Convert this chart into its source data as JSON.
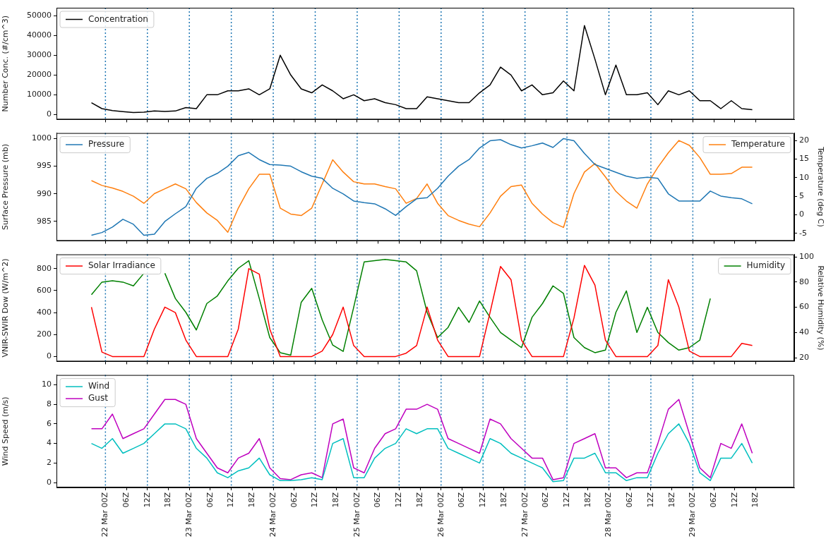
{
  "chart_data": [
    {
      "type": "line",
      "ylabel": "Number Conc. (#/cm^3)",
      "legend": "top left",
      "grid": false,
      "tick_labels": "y",
      "x": [
        "--03-21T20:00",
        "--03-21T23:00",
        "--03-22T02:00",
        "--03-22T05:00",
        "--03-22T08:00",
        "--03-22T11:00",
        "--03-22T14:00",
        "--03-22T17:00",
        "--03-22T20:00",
        "--03-22T23:00",
        "--03-23T02:00",
        "--03-23T05:00",
        "--03-23T08:00",
        "--03-23T11:00",
        "--03-23T14:00",
        "--03-23T17:00",
        "--03-23T20:00",
        "--03-23T23:00",
        "--03-24T02:00",
        "--03-24T05:00",
        "--03-24T08:00",
        "--03-24T11:00",
        "--03-24T14:00",
        "--03-24T17:00",
        "--03-24T20:00",
        "--03-24T23:00",
        "--03-25T02:00",
        "--03-25T05:00",
        "--03-25T08:00",
        "--03-25T11:00",
        "--03-25T14:00",
        "--03-25T17:00",
        "--03-25T20:00",
        "--03-25T23:00",
        "--03-26T02:00",
        "--03-26T05:00",
        "--03-26T08:00",
        "--03-26T11:00",
        "--03-26T14:00",
        "--03-26T17:00",
        "--03-26T20:00",
        "--03-26T23:00",
        "--03-27T02:00",
        "--03-27T05:00",
        "--03-27T08:00",
        "--03-27T11:00",
        "--03-27T14:00",
        "--03-27T17:00",
        "--03-27T20:00",
        "--03-27T23:00",
        "--03-28T02:00",
        "--03-28T05:00",
        "--03-28T08:00",
        "--03-28T11:00",
        "--03-28T14:00",
        "--03-28T17:00",
        "--03-28T20:00",
        "--03-28T23:00",
        "--03-29T02:00",
        "--03-29T05:00",
        "--03-29T08:00",
        "--03-29T11:00",
        "--03-29T14:00",
        "--03-29T17:00"
      ],
      "xlim": [
        "--03-21T10:00",
        "--03-30T05:00"
      ],
      "xticks": [
        {
          "value": "--03-22T00:00",
          "label": null
        },
        {
          "value": "--03-22T06:00",
          "label": null
        },
        {
          "value": "--03-22T12:00",
          "label": null
        },
        {
          "value": "--03-22T18:00",
          "label": null
        },
        {
          "value": "--03-23T00:00",
          "label": null
        },
        {
          "value": "--03-23T06:00",
          "label": null
        },
        {
          "value": "--03-23T12:00",
          "label": null
        },
        {
          "value": "--03-23T18:00",
          "label": null
        },
        {
          "value": "--03-24T00:00",
          "label": null
        },
        {
          "value": "--03-24T06:00",
          "label": null
        },
        {
          "value": "--03-24T12:00",
          "label": null
        },
        {
          "value": "--03-24T18:00",
          "label": null
        },
        {
          "value": "--03-25T00:00",
          "label": null
        },
        {
          "value": "--03-25T06:00",
          "label": null
        },
        {
          "value": "--03-25T12:00",
          "label": null
        },
        {
          "value": "--03-25T18:00",
          "label": null
        },
        {
          "value": "--03-26T00:00",
          "label": null
        },
        {
          "value": "--03-26T06:00",
          "label": null
        },
        {
          "value": "--03-26T12:00",
          "label": null
        },
        {
          "value": "--03-26T18:00",
          "label": null
        },
        {
          "value": "--03-27T00:00",
          "label": null
        },
        {
          "value": "--03-27T06:00",
          "label": null
        },
        {
          "value": "--03-27T12:00",
          "label": null
        },
        {
          "value": "--03-27T18:00",
          "label": null
        },
        {
          "value": "--03-28T00:00",
          "label": null
        },
        {
          "value": "--03-28T06:00",
          "label": null
        },
        {
          "value": "--03-28T12:00",
          "label": null
        },
        {
          "value": "--03-28T18:00",
          "label": null
        },
        {
          "value": "--03-29T00:00",
          "label": null
        },
        {
          "value": "--03-29T06:00",
          "label": null
        },
        {
          "value": "--03-29T12:00",
          "label": null
        },
        {
          "value": "--03-29T18:00",
          "label": null
        }
      ],
      "ylim": [
        -2500,
        54000
      ],
      "yticks": [
        0,
        10000,
        20000,
        30000,
        40000,
        50000
      ],
      "ref_lines": [
        {
          "axis": "x",
          "value": "--03-22T00:00",
          "color": "#1f77b4",
          "line_style": "dotted"
        },
        {
          "axis": "x",
          "value": "--03-22T12:00",
          "color": "#1f77b4",
          "line_style": "dotted"
        },
        {
          "axis": "x",
          "value": "--03-23T00:00",
          "color": "#1f77b4",
          "line_style": "dotted"
        },
        {
          "axis": "x",
          "value": "--03-23T12:00",
          "color": "#1f77b4",
          "line_style": "dotted"
        },
        {
          "axis": "x",
          "value": "--03-24T00:00",
          "color": "#1f77b4",
          "line_style": "dotted"
        },
        {
          "axis": "x",
          "value": "--03-24T12:00",
          "color": "#1f77b4",
          "line_style": "dotted"
        },
        {
          "axis": "x",
          "value": "--03-25T00:00",
          "color": "#1f77b4",
          "line_style": "dotted"
        },
        {
          "axis": "x",
          "value": "--03-25T12:00",
          "color": "#1f77b4",
          "line_style": "dotted"
        },
        {
          "axis": "x",
          "value": "--03-26T00:00",
          "color": "#1f77b4",
          "line_style": "dotted"
        },
        {
          "axis": "x",
          "value": "--03-26T12:00",
          "color": "#1f77b4",
          "line_style": "dotted"
        },
        {
          "axis": "x",
          "value": "--03-27T00:00",
          "color": "#1f77b4",
          "line_style": "dotted"
        },
        {
          "axis": "x",
          "value": "--03-27T12:00",
          "color": "#1f77b4",
          "line_style": "dotted"
        },
        {
          "axis": "x",
          "value": "--03-28T00:00",
          "color": "#1f77b4",
          "line_style": "dotted"
        },
        {
          "axis": "x",
          "value": "--03-28T12:00",
          "color": "#1f77b4",
          "line_style": "dotted"
        },
        {
          "axis": "x",
          "value": "--03-29T00:00",
          "color": "#1f77b4",
          "line_style": "dotted"
        }
      ],
      "series": [
        {
          "name": "Concentration",
          "color": "#000000",
          "values": [
            6000,
            3000,
            2000,
            1500,
            1000,
            1200,
            1800,
            1600,
            1800,
            3500,
            3000,
            10000,
            10000,
            12000,
            12000,
            13000,
            10000,
            13000,
            30000,
            20000,
            13000,
            11000,
            15000,
            12000,
            8000,
            10000,
            7000,
            8000,
            6000,
            5000,
            3000,
            3000,
            9000,
            8000,
            7000,
            6000,
            6000,
            11000,
            15000,
            24000,
            20000,
            12000,
            15000,
            10000,
            11000,
            17000,
            12000,
            45000,
            28000,
            10000,
            25000,
            10000,
            10000,
            11000,
            5000,
            12000,
            10000,
            12000,
            7000,
            7000,
            3000,
            7000,
            3000,
            2500
          ]
        }
      ]
    },
    {
      "type": "line",
      "ylabel": "Surface Pressure (mb)",
      "y2label": "Temperature (deg C)",
      "legend": "top left",
      "grid": false,
      "tick_labels": "y",
      "x": [
        "--03-21T20:00",
        "--03-21T23:00",
        "--03-22T02:00",
        "--03-22T05:00",
        "--03-22T08:00",
        "--03-22T11:00",
        "--03-22T14:00",
        "--03-22T17:00",
        "--03-22T20:00",
        "--03-22T23:00",
        "--03-23T02:00",
        "--03-23T05:00",
        "--03-23T08:00",
        "--03-23T11:00",
        "--03-23T14:00",
        "--03-23T17:00",
        "--03-23T20:00",
        "--03-23T23:00",
        "--03-24T02:00",
        "--03-24T05:00",
        "--03-24T08:00",
        "--03-24T11:00",
        "--03-24T14:00",
        "--03-24T17:00",
        "--03-24T20:00",
        "--03-24T23:00",
        "--03-25T02:00",
        "--03-25T05:00",
        "--03-25T08:00",
        "--03-25T11:00",
        "--03-25T14:00",
        "--03-25T17:00",
        "--03-25T20:00",
        "--03-25T23:00",
        "--03-26T02:00",
        "--03-26T05:00",
        "--03-26T08:00",
        "--03-26T11:00",
        "--03-26T14:00",
        "--03-26T17:00",
        "--03-26T20:00",
        "--03-26T23:00",
        "--03-27T02:00",
        "--03-27T05:00",
        "--03-27T08:00",
        "--03-27T11:00",
        "--03-27T14:00",
        "--03-27T17:00",
        "--03-27T20:00",
        "--03-27T23:00",
        "--03-28T02:00",
        "--03-28T05:00",
        "--03-28T08:00",
        "--03-28T11:00",
        "--03-28T14:00",
        "--03-28T17:00",
        "--03-28T20:00",
        "--03-28T23:00",
        "--03-29T02:00",
        "--03-29T05:00",
        "--03-29T08:00",
        "--03-29T11:00",
        "--03-29T14:00",
        "--03-29T17:00"
      ],
      "xlim": [
        "--03-21T10:00",
        "--03-30T05:00"
      ],
      "xticks": [
        {
          "value": "--03-22T00:00",
          "label": null
        },
        {
          "value": "--03-22T06:00",
          "label": null
        },
        {
          "value": "--03-22T12:00",
          "label": null
        },
        {
          "value": "--03-22T18:00",
          "label": null
        },
        {
          "value": "--03-23T00:00",
          "label": null
        },
        {
          "value": "--03-23T06:00",
          "label": null
        },
        {
          "value": "--03-23T12:00",
          "label": null
        },
        {
          "value": "--03-23T18:00",
          "label": null
        },
        {
          "value": "--03-24T00:00",
          "label": null
        },
        {
          "value": "--03-24T06:00",
          "label": null
        },
        {
          "value": "--03-24T12:00",
          "label": null
        },
        {
          "value": "--03-24T18:00",
          "label": null
        },
        {
          "value": "--03-25T00:00",
          "label": null
        },
        {
          "value": "--03-25T06:00",
          "label": null
        },
        {
          "value": "--03-25T12:00",
          "label": null
        },
        {
          "value": "--03-25T18:00",
          "label": null
        },
        {
          "value": "--03-26T00:00",
          "label": null
        },
        {
          "value": "--03-26T06:00",
          "label": null
        },
        {
          "value": "--03-26T12:00",
          "label": null
        },
        {
          "value": "--03-26T18:00",
          "label": null
        },
        {
          "value": "--03-27T00:00",
          "label": null
        },
        {
          "value": "--03-27T06:00",
          "label": null
        },
        {
          "value": "--03-27T12:00",
          "label": null
        },
        {
          "value": "--03-27T18:00",
          "label": null
        },
        {
          "value": "--03-28T00:00",
          "label": null
        },
        {
          "value": "--03-28T06:00",
          "label": null
        },
        {
          "value": "--03-28T12:00",
          "label": null
        },
        {
          "value": "--03-28T18:00",
          "label": null
        },
        {
          "value": "--03-29T00:00",
          "label": null
        },
        {
          "value": "--03-29T06:00",
          "label": null
        },
        {
          "value": "--03-29T12:00",
          "label": null
        },
        {
          "value": "--03-29T18:00",
          "label": null
        }
      ],
      "ylim": [
        981.5,
        1001
      ],
      "yticks": [
        985,
        990,
        995,
        1000
      ],
      "y2lim": [
        -7,
        22
      ],
      "y2ticks": [
        -5,
        0,
        5,
        10,
        15,
        20
      ],
      "ref_lines": [
        {
          "axis": "x",
          "value": "--03-22T00:00",
          "color": "#1f77b4",
          "line_style": "dotted"
        },
        {
          "axis": "x",
          "value": "--03-22T12:00",
          "color": "#1f77b4",
          "line_style": "dotted"
        },
        {
          "axis": "x",
          "value": "--03-23T00:00",
          "color": "#1f77b4",
          "line_style": "dotted"
        },
        {
          "axis": "x",
          "value": "--03-23T12:00",
          "color": "#1f77b4",
          "line_style": "dotted"
        },
        {
          "axis": "x",
          "value": "--03-24T00:00",
          "color": "#1f77b4",
          "line_style": "dotted"
        },
        {
          "axis": "x",
          "value": "--03-24T12:00",
          "color": "#1f77b4",
          "line_style": "dotted"
        },
        {
          "axis": "x",
          "value": "--03-25T00:00",
          "color": "#1f77b4",
          "line_style": "dotted"
        },
        {
          "axis": "x",
          "value": "--03-25T12:00",
          "color": "#1f77b4",
          "line_style": "dotted"
        },
        {
          "axis": "x",
          "value": "--03-26T00:00",
          "color": "#1f77b4",
          "line_style": "dotted"
        },
        {
          "axis": "x",
          "value": "--03-26T12:00",
          "color": "#1f77b4",
          "line_style": "dotted"
        },
        {
          "axis": "x",
          "value": "--03-27T00:00",
          "color": "#1f77b4",
          "line_style": "dotted"
        },
        {
          "axis": "x",
          "value": "--03-27T12:00",
          "color": "#1f77b4",
          "line_style": "dotted"
        },
        {
          "axis": "x",
          "value": "--03-28T00:00",
          "color": "#1f77b4",
          "line_style": "dotted"
        },
        {
          "axis": "x",
          "value": "--03-28T12:00",
          "color": "#1f77b4",
          "line_style": "dotted"
        },
        {
          "axis": "x",
          "value": "--03-29T00:00",
          "color": "#1f77b4",
          "line_style": "dotted"
        }
      ],
      "series": [
        {
          "name": "Pressure",
          "color": "#1f77b4",
          "values": [
            982.5,
            983,
            984,
            985.4,
            984.5,
            982.5,
            982.7,
            985,
            986.4,
            987.7,
            991,
            992.8,
            993.7,
            995,
            996.9,
            997.5,
            996.2,
            995.3,
            995.2,
            995,
            994,
            993.2,
            992.8,
            991,
            990,
            988.7,
            988.4,
            988.2,
            987.3,
            986.1,
            987.7,
            989.1,
            989.3,
            991,
            993.2,
            995,
            996.2,
            998.3,
            999.6,
            999.8,
            998.9,
            998.3,
            998.7,
            999.2,
            998.4,
            1000,
            999.6,
            997.3,
            995.3,
            994.6,
            993.9,
            993.2,
            992.8,
            993,
            992.8,
            990,
            988.7,
            988.7,
            988.7,
            990.5,
            989.6,
            989.3,
            989.1,
            988.2
          ]
        },
        {
          "name": "Temperature",
          "color": "#ff7f0e",
          "axis": "y2",
          "values": [
            9.2,
            7.9,
            7.2,
            6.3,
            5,
            3.1,
            5.7,
            7,
            8.3,
            7,
            3.3,
            0.5,
            -1.5,
            -4.7,
            1.8,
            7,
            10.9,
            10.9,
            1.8,
            0.2,
            -0.2,
            1.8,
            8.3,
            14.8,
            11.5,
            8.9,
            8.3,
            8.3,
            7.6,
            7,
            3.1,
            4.4,
            8.3,
            3.1,
            -0.2,
            -1.5,
            -2.5,
            -3.2,
            0.5,
            5,
            7.6,
            8,
            3.1,
            0.2,
            -2.1,
            -3.4,
            5.7,
            11.5,
            13.8,
            10.2,
            6.3,
            3.7,
            1.8,
            8.3,
            12.8,
            16.7,
            20,
            18.7,
            15.4,
            10.9,
            10.9,
            11.1,
            12.8,
            12.8
          ]
        }
      ]
    },
    {
      "type": "line",
      "ylabel": "VNIR-SWIR Dow (W/m^2)",
      "y2label": "Relative Humidity (%)",
      "legend": "top left",
      "grid": false,
      "tick_labels": "y",
      "x": [
        "--03-21T20:00",
        "--03-21T23:00",
        "--03-22T02:00",
        "--03-22T05:00",
        "--03-22T08:00",
        "--03-22T11:00",
        "--03-22T14:00",
        "--03-22T17:00",
        "--03-22T20:00",
        "--03-22T23:00",
        "--03-23T02:00",
        "--03-23T05:00",
        "--03-23T08:00",
        "--03-23T11:00",
        "--03-23T14:00",
        "--03-23T17:00",
        "--03-23T20:00",
        "--03-23T23:00",
        "--03-24T02:00",
        "--03-24T05:00",
        "--03-24T08:00",
        "--03-24T11:00",
        "--03-24T14:00",
        "--03-24T17:00",
        "--03-24T20:00",
        "--03-24T23:00",
        "--03-25T02:00",
        "--03-25T05:00",
        "--03-25T08:00",
        "--03-25T11:00",
        "--03-25T14:00",
        "--03-25T17:00",
        "--03-25T20:00",
        "--03-25T23:00",
        "--03-26T02:00",
        "--03-26T05:00",
        "--03-26T08:00",
        "--03-26T11:00",
        "--03-26T14:00",
        "--03-26T17:00",
        "--03-26T20:00",
        "--03-26T23:00",
        "--03-27T02:00",
        "--03-27T05:00",
        "--03-27T08:00",
        "--03-27T11:00",
        "--03-27T14:00",
        "--03-27T17:00",
        "--03-27T20:00",
        "--03-27T23:00",
        "--03-28T02:00",
        "--03-28T05:00",
        "--03-28T08:00",
        "--03-28T11:00",
        "--03-28T14:00",
        "--03-28T17:00",
        "--03-28T20:00",
        "--03-28T23:00",
        "--03-29T02:00",
        "--03-29T05:00",
        "--03-29T08:00",
        "--03-29T11:00",
        "--03-29T14:00",
        "--03-29T17:00"
      ],
      "xlim": [
        "--03-21T10:00",
        "--03-30T05:00"
      ],
      "xticks": [
        {
          "value": "--03-22T00:00",
          "label": null
        },
        {
          "value": "--03-22T06:00",
          "label": null
        },
        {
          "value": "--03-22T12:00",
          "label": null
        },
        {
          "value": "--03-22T18:00",
          "label": null
        },
        {
          "value": "--03-23T00:00",
          "label": null
        },
        {
          "value": "--03-23T06:00",
          "label": null
        },
        {
          "value": "--03-23T12:00",
          "label": null
        },
        {
          "value": "--03-23T18:00",
          "label": null
        },
        {
          "value": "--03-24T00:00",
          "label": null
        },
        {
          "value": "--03-24T06:00",
          "label": null
        },
        {
          "value": "--03-24T12:00",
          "label": null
        },
        {
          "value": "--03-24T18:00",
          "label": null
        },
        {
          "value": "--03-25T00:00",
          "label": null
        },
        {
          "value": "--03-25T06:00",
          "label": null
        },
        {
          "value": "--03-25T12:00",
          "label": null
        },
        {
          "value": "--03-25T18:00",
          "label": null
        },
        {
          "value": "--03-26T00:00",
          "label": null
        },
        {
          "value": "--03-26T06:00",
          "label": null
        },
        {
          "value": "--03-26T12:00",
          "label": null
        },
        {
          "value": "--03-26T18:00",
          "label": null
        },
        {
          "value": "--03-27T00:00",
          "label": null
        },
        {
          "value": "--03-27T06:00",
          "label": null
        },
        {
          "value": "--03-27T12:00",
          "label": null
        },
        {
          "value": "--03-27T18:00",
          "label": null
        },
        {
          "value": "--03-28T00:00",
          "label": null
        },
        {
          "value": "--03-28T06:00",
          "label": null
        },
        {
          "value": "--03-28T12:00",
          "label": null
        },
        {
          "value": "--03-28T18:00",
          "label": null
        },
        {
          "value": "--03-29T00:00",
          "label": null
        },
        {
          "value": "--03-29T06:00",
          "label": null
        },
        {
          "value": "--03-29T12:00",
          "label": null
        },
        {
          "value": "--03-29T18:00",
          "label": null
        }
      ],
      "ylim": [
        -45,
        930
      ],
      "yticks": [
        0,
        200,
        400,
        600,
        800
      ],
      "y2lim": [
        17,
        102
      ],
      "y2ticks": [
        20,
        40,
        60,
        80,
        100
      ],
      "ref_lines": [
        {
          "axis": "x",
          "value": "--03-22T00:00",
          "color": "#1f77b4",
          "line_style": "dotted"
        },
        {
          "axis": "x",
          "value": "--03-22T12:00",
          "color": "#1f77b4",
          "line_style": "dotted"
        },
        {
          "axis": "x",
          "value": "--03-23T00:00",
          "color": "#1f77b4",
          "line_style": "dotted"
        },
        {
          "axis": "x",
          "value": "--03-23T12:00",
          "color": "#1f77b4",
          "line_style": "dotted"
        },
        {
          "axis": "x",
          "value": "--03-24T00:00",
          "color": "#1f77b4",
          "line_style": "dotted"
        },
        {
          "axis": "x",
          "value": "--03-24T12:00",
          "color": "#1f77b4",
          "line_style": "dotted"
        },
        {
          "axis": "x",
          "value": "--03-25T00:00",
          "color": "#1f77b4",
          "line_style": "dotted"
        },
        {
          "axis": "x",
          "value": "--03-25T12:00",
          "color": "#1f77b4",
          "line_style": "dotted"
        },
        {
          "axis": "x",
          "value": "--03-26T00:00",
          "color": "#1f77b4",
          "line_style": "dotted"
        },
        {
          "axis": "x",
          "value": "--03-26T12:00",
          "color": "#1f77b4",
          "line_style": "dotted"
        },
        {
          "axis": "x",
          "value": "--03-27T00:00",
          "color": "#1f77b4",
          "line_style": "dotted"
        },
        {
          "axis": "x",
          "value": "--03-27T12:00",
          "color": "#1f77b4",
          "line_style": "dotted"
        },
        {
          "axis": "x",
          "value": "--03-28T00:00",
          "color": "#1f77b4",
          "line_style": "dotted"
        },
        {
          "axis": "x",
          "value": "--03-28T12:00",
          "color": "#1f77b4",
          "line_style": "dotted"
        },
        {
          "axis": "x",
          "value": "--03-29T00:00",
          "color": "#1f77b4",
          "line_style": "dotted"
        }
      ],
      "series": [
        {
          "name": "Solar Irradiance",
          "color": "#ff0000",
          "values": [
            450,
            40,
            0,
            0,
            0,
            0,
            250,
            450,
            400,
            150,
            0,
            0,
            0,
            0,
            250,
            800,
            750,
            250,
            0,
            0,
            0,
            0,
            50,
            200,
            450,
            100,
            0,
            0,
            0,
            0,
            30,
            100,
            450,
            150,
            0,
            0,
            0,
            0,
            400,
            820,
            700,
            150,
            0,
            0,
            0,
            0,
            350,
            830,
            650,
            150,
            0,
            0,
            0,
            0,
            100,
            700,
            450,
            50,
            0,
            0,
            0,
            0,
            120,
            100
          ]
        },
        {
          "name": "Humidity",
          "color": "#008000",
          "axis": "y2",
          "values": [
            70,
            80,
            81,
            80,
            77,
            87,
            null,
            87,
            67,
            56,
            42,
            63,
            69,
            81,
            91,
            97,
            67,
            36,
            24,
            22,
            64,
            75,
            50,
            30,
            25,
            60,
            96,
            97,
            98,
            97,
            96,
            89,
            56,
            36,
            44,
            60,
            48,
            65,
            52,
            40,
            34,
            28,
            52,
            63,
            77,
            71,
            36,
            28,
            24,
            26,
            56,
            73,
            40,
            60,
            40,
            32,
            26,
            28,
            34,
            67,
            null,
            null,
            null,
            null
          ]
        }
      ]
    },
    {
      "type": "line",
      "ylabel": "Wind Speed (m/s)",
      "legend": "top left",
      "grid": false,
      "x": [
        "--03-21T20:00",
        "--03-21T23:00",
        "--03-22T02:00",
        "--03-22T05:00",
        "--03-22T08:00",
        "--03-22T11:00",
        "--03-22T14:00",
        "--03-22T17:00",
        "--03-22T20:00",
        "--03-22T23:00",
        "--03-23T02:00",
        "--03-23T05:00",
        "--03-23T08:00",
        "--03-23T11:00",
        "--03-23T14:00",
        "--03-23T17:00",
        "--03-23T20:00",
        "--03-23T23:00",
        "--03-24T02:00",
        "--03-24T05:00",
        "--03-24T08:00",
        "--03-24T11:00",
        "--03-24T14:00",
        "--03-24T17:00",
        "--03-24T20:00",
        "--03-24T23:00",
        "--03-25T02:00",
        "--03-25T05:00",
        "--03-25T08:00",
        "--03-25T11:00",
        "--03-25T14:00",
        "--03-25T17:00",
        "--03-25T20:00",
        "--03-25T23:00",
        "--03-26T02:00",
        "--03-26T05:00",
        "--03-26T08:00",
        "--03-26T11:00",
        "--03-26T14:00",
        "--03-26T17:00",
        "--03-26T20:00",
        "--03-26T23:00",
        "--03-27T02:00",
        "--03-27T05:00",
        "--03-27T08:00",
        "--03-27T11:00",
        "--03-27T14:00",
        "--03-27T17:00",
        "--03-27T20:00",
        "--03-27T23:00",
        "--03-28T02:00",
        "--03-28T05:00",
        "--03-28T08:00",
        "--03-28T11:00",
        "--03-28T14:00",
        "--03-28T17:00",
        "--03-28T20:00",
        "--03-28T23:00",
        "--03-29T02:00",
        "--03-29T05:00",
        "--03-29T08:00",
        "--03-29T11:00",
        "--03-29T14:00",
        "--03-29T17:00"
      ],
      "xlim": [
        "--03-21T10:00",
        "--03-30T05:00"
      ],
      "xticks": [
        {
          "value": "--03-22T00:00",
          "label": "22 Mar 00Z"
        },
        {
          "value": "--03-22T06:00",
          "label": "06Z"
        },
        {
          "value": "--03-22T12:00",
          "label": "12Z"
        },
        {
          "value": "--03-22T18:00",
          "label": "18Z"
        },
        {
          "value": "--03-23T00:00",
          "label": "23 Mar 00Z"
        },
        {
          "value": "--03-23T06:00",
          "label": "06Z"
        },
        {
          "value": "--03-23T12:00",
          "label": "12Z"
        },
        {
          "value": "--03-23T18:00",
          "label": "18Z"
        },
        {
          "value": "--03-24T00:00",
          "label": "24 Mar 00Z"
        },
        {
          "value": "--03-24T06:00",
          "label": "06Z"
        },
        {
          "value": "--03-24T12:00",
          "label": "12Z"
        },
        {
          "value": "--03-24T18:00",
          "label": "18Z"
        },
        {
          "value": "--03-25T00:00",
          "label": "25 Mar 00Z"
        },
        {
          "value": "--03-25T06:00",
          "label": "06Z"
        },
        {
          "value": "--03-25T12:00",
          "label": "12Z"
        },
        {
          "value": "--03-25T18:00",
          "label": "18Z"
        },
        {
          "value": "--03-26T00:00",
          "label": "26 Mar 00Z"
        },
        {
          "value": "--03-26T06:00",
          "label": "06Z"
        },
        {
          "value": "--03-26T12:00",
          "label": "12Z"
        },
        {
          "value": "--03-26T18:00",
          "label": "18Z"
        },
        {
          "value": "--03-27T00:00",
          "label": "27 Mar 00Z"
        },
        {
          "value": "--03-27T06:00",
          "label": "06Z"
        },
        {
          "value": "--03-27T12:00",
          "label": "12Z"
        },
        {
          "value": "--03-27T18:00",
          "label": "18Z"
        },
        {
          "value": "--03-28T00:00",
          "label": "28 Mar 00Z"
        },
        {
          "value": "--03-28T06:00",
          "label": "06Z"
        },
        {
          "value": "--03-28T12:00",
          "label": "12Z"
        },
        {
          "value": "--03-28T18:00",
          "label": "18Z"
        },
        {
          "value": "--03-29T00:00",
          "label": "29 Mar 00Z"
        },
        {
          "value": "--03-29T06:00",
          "label": "06Z"
        },
        {
          "value": "--03-29T12:00",
          "label": "12Z"
        },
        {
          "value": "--03-29T18:00",
          "label": "18Z"
        }
      ],
      "ylim": [
        -0.5,
        11
      ],
      "yticks": [
        0,
        2,
        4,
        6,
        8,
        10
      ],
      "ref_lines": [
        {
          "axis": "x",
          "value": "--03-22T00:00",
          "color": "#1f77b4",
          "line_style": "dotted"
        },
        {
          "axis": "x",
          "value": "--03-22T12:00",
          "color": "#1f77b4",
          "line_style": "dotted"
        },
        {
          "axis": "x",
          "value": "--03-23T00:00",
          "color": "#1f77b4",
          "line_style": "dotted"
        },
        {
          "axis": "x",
          "value": "--03-23T12:00",
          "color": "#1f77b4",
          "line_style": "dotted"
        },
        {
          "axis": "x",
          "value": "--03-24T00:00",
          "color": "#1f77b4",
          "line_style": "dotted"
        },
        {
          "axis": "x",
          "value": "--03-24T12:00",
          "color": "#1f77b4",
          "line_style": "dotted"
        },
        {
          "axis": "x",
          "value": "--03-25T00:00",
          "color": "#1f77b4",
          "line_style": "dotted"
        },
        {
          "axis": "x",
          "value": "--03-25T12:00",
          "color": "#1f77b4",
          "line_style": "dotted"
        },
        {
          "axis": "x",
          "value": "--03-26T00:00",
          "color": "#1f77b4",
          "line_style": "dotted"
        },
        {
          "axis": "x",
          "value": "--03-26T12:00",
          "color": "#1f77b4",
          "line_style": "dotted"
        },
        {
          "axis": "x",
          "value": "--03-27T00:00",
          "color": "#1f77b4",
          "line_style": "dotted"
        },
        {
          "axis": "x",
          "value": "--03-27T12:00",
          "color": "#1f77b4",
          "line_style": "dotted"
        },
        {
          "axis": "x",
          "value": "--03-28T00:00",
          "color": "#1f77b4",
          "line_style": "dotted"
        },
        {
          "axis": "x",
          "value": "--03-28T12:00",
          "color": "#1f77b4",
          "line_style": "dotted"
        },
        {
          "axis": "x",
          "value": "--03-29T00:00",
          "color": "#1f77b4",
          "line_style": "dotted"
        }
      ],
      "series": [
        {
          "name": "Wind",
          "color": "#00bfbf",
          "values": [
            4.0,
            3.5,
            4.5,
            3.0,
            3.5,
            4.0,
            5.0,
            6.0,
            6.0,
            5.5,
            3.5,
            2.5,
            1.0,
            0.5,
            1.2,
            1.5,
            2.5,
            0.8,
            0.2,
            0.2,
            0.3,
            0.5,
            0.3,
            4.0,
            4.5,
            0.5,
            0.5,
            2.5,
            3.5,
            4.0,
            5.5,
            5.0,
            5.5,
            5.5,
            3.5,
            3.0,
            2.5,
            2.0,
            4.5,
            4.0,
            3.0,
            2.5,
            2.0,
            1.5,
            0.1,
            0.2,
            2.5,
            2.5,
            3.0,
            1.0,
            1.0,
            0.2,
            0.5,
            0.5,
            3.0,
            5.0,
            6.0,
            4.0,
            1.0,
            0.2,
            2.5,
            2.5,
            4.0,
            2.0
          ]
        },
        {
          "name": "Gust",
          "color": "#bf00bf",
          "values": [
            5.5,
            5.5,
            7.0,
            4.5,
            5.0,
            5.5,
            7.0,
            8.5,
            8.5,
            8.0,
            4.5,
            3.0,
            1.5,
            1.0,
            2.5,
            3.0,
            4.5,
            1.5,
            0.4,
            0.3,
            0.8,
            1.0,
            0.5,
            6.0,
            6.5,
            1.5,
            1.0,
            3.5,
            5.0,
            5.5,
            7.5,
            7.5,
            8.0,
            7.5,
            4.5,
            4.0,
            3.5,
            3.0,
            6.5,
            6.0,
            4.5,
            3.5,
            2.5,
            2.5,
            0.3,
            0.5,
            4.0,
            4.5,
            5.0,
            1.5,
            1.5,
            0.5,
            1.0,
            1.0,
            4.0,
            7.5,
            8.5,
            5.0,
            1.5,
            0.5,
            4.0,
            3.5,
            6.0,
            3.0
          ]
        }
      ]
    }
  ]
}
